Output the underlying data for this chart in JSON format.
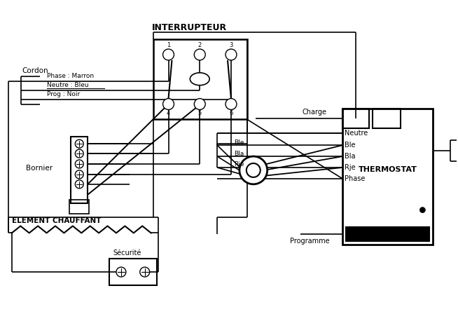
{
  "bg_color": "#ffffff",
  "line_color": "#000000",
  "labels": {
    "interrupteur": "INTERRUPTEUR",
    "cordon": "Cordon",
    "bornier": "Bornier",
    "phase": "Phase : Marron",
    "neutre_bleu": "Neutre : Bleu",
    "prog": "Prog : Noir",
    "elem_chauf": "ELEMENT CHAUFFANT",
    "securite": "Sécurité",
    "charge": "Charge",
    "neutre_th": "Neutre",
    "ble": "Ble",
    "bla": "Bla",
    "rje": "Rje",
    "phase_th": "Phase",
    "programme": "Programme",
    "thermostat": "THERMOSTAT",
    "jble": "Ble",
    "jbla": "Bla",
    "jrje": "Rje"
  }
}
